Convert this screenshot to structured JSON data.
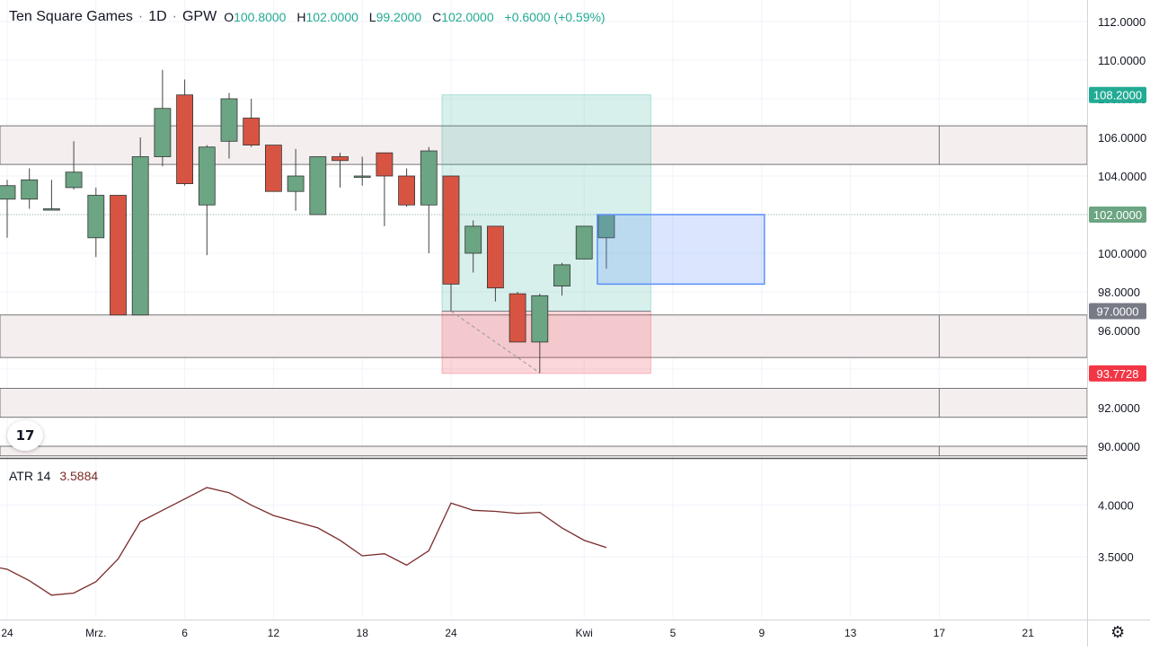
{
  "header": {
    "symbol": "Ten Square Games",
    "interval": "1D",
    "exchange": "GPW",
    "open_label": "O",
    "open": "100.8000",
    "high_label": "H",
    "high": "102.0000",
    "low_label": "L",
    "low": "99.2000",
    "close_label": "C",
    "close": "102.0000",
    "change": "+0.6000 (+0.59%)"
  },
  "indicator": {
    "name": "ATR 14",
    "value": "3.5884"
  },
  "colors": {
    "up": "#6ba583",
    "down": "#d75442",
    "atr": "#7b2a2a",
    "target": "#22ab94",
    "stop": "#f23645",
    "projection": "#5b8ff9"
  },
  "chart_data": [
    {
      "type": "candlestick",
      "title": "",
      "xlabel": "",
      "ylabel": "",
      "ylim": [
        89.5,
        112.8
      ],
      "x_ticks": [
        {
          "label": "24",
          "slot": 0
        },
        {
          "label": "Mrz.",
          "slot": 4
        },
        {
          "label": "6",
          "slot": 8
        },
        {
          "label": "12",
          "slot": 12
        },
        {
          "label": "18",
          "slot": 16
        },
        {
          "label": "24",
          "slot": 20
        },
        {
          "label": "Kwi",
          "slot": 26
        },
        {
          "label": "5",
          "slot": 30
        },
        {
          "label": "9",
          "slot": 34
        },
        {
          "label": "13",
          "slot": 38
        },
        {
          "label": "17",
          "slot": 42
        },
        {
          "label": "21",
          "slot": 46
        }
      ],
      "y_ticks": [
        112,
        110,
        108,
        106,
        104,
        102,
        100,
        98,
        96,
        94,
        92,
        90
      ],
      "price_labels": [
        {
          "value": 108.2,
          "text": "108.2000",
          "color": "#22ab94"
        },
        {
          "value": 102.0,
          "text": "102.0000",
          "color": "#6ba583"
        },
        {
          "value": 97.0,
          "text": "97.0000",
          "color": "#787b86"
        },
        {
          "value": 93.7728,
          "text": "93.7728",
          "color": "#f23645"
        }
      ],
      "candles": [
        {
          "slot": 0,
          "o": 102.8,
          "h": 103.8,
          "l": 100.8,
          "c": 103.5
        },
        {
          "slot": 1,
          "o": 102.8,
          "h": 104.4,
          "l": 102.3,
          "c": 103.8
        },
        {
          "slot": 2,
          "o": 102.3,
          "h": 103.8,
          "l": 102.3,
          "c": 102.3
        },
        {
          "slot": 3,
          "o": 103.4,
          "h": 105.8,
          "l": 103.3,
          "c": 104.2
        },
        {
          "slot": 4,
          "o": 100.8,
          "h": 103.4,
          "l": 99.8,
          "c": 103.0
        },
        {
          "slot": 5,
          "o": 103.0,
          "h": 103.0,
          "l": 96.8,
          "c": 96.8
        },
        {
          "slot": 6,
          "o": 96.8,
          "h": 106.0,
          "l": 96.8,
          "c": 105.0
        },
        {
          "slot": 7,
          "o": 105.0,
          "h": 109.5,
          "l": 104.5,
          "c": 107.5
        },
        {
          "slot": 8,
          "o": 108.2,
          "h": 109.0,
          "l": 103.5,
          "c": 103.6
        },
        {
          "slot": 9,
          "o": 102.5,
          "h": 105.6,
          "l": 99.9,
          "c": 105.5
        },
        {
          "slot": 10,
          "o": 105.8,
          "h": 108.3,
          "l": 104.9,
          "c": 108.0
        },
        {
          "slot": 11,
          "o": 107.0,
          "h": 108.0,
          "l": 105.5,
          "c": 105.6
        },
        {
          "slot": 12,
          "o": 105.6,
          "h": 105.6,
          "l": 103.2,
          "c": 103.2
        },
        {
          "slot": 13,
          "o": 103.2,
          "h": 105.4,
          "l": 102.2,
          "c": 104.0
        },
        {
          "slot": 14,
          "o": 102.0,
          "h": 105.0,
          "l": 102.0,
          "c": 105.0
        },
        {
          "slot": 15,
          "o": 105.0,
          "h": 105.2,
          "l": 103.4,
          "c": 104.8
        },
        {
          "slot": 16,
          "o": 104.0,
          "h": 105.0,
          "l": 103.5,
          "c": 104.0
        },
        {
          "slot": 17,
          "o": 105.2,
          "h": 105.2,
          "l": 101.4,
          "c": 104.0
        },
        {
          "slot": 18,
          "o": 104.0,
          "h": 104.4,
          "l": 102.4,
          "c": 102.5
        },
        {
          "slot": 19,
          "o": 102.5,
          "h": 105.5,
          "l": 100.0,
          "c": 105.3
        },
        {
          "slot": 20,
          "o": 104.0,
          "h": 104.0,
          "l": 97.0,
          "c": 98.4
        },
        {
          "slot": 21,
          "o": 100.0,
          "h": 101.7,
          "l": 99.0,
          "c": 101.4
        },
        {
          "slot": 22,
          "o": 101.4,
          "h": 101.4,
          "l": 97.5,
          "c": 98.2
        },
        {
          "slot": 23,
          "o": 97.9,
          "h": 98.0,
          "l": 95.4,
          "c": 95.4
        },
        {
          "slot": 24,
          "o": 95.4,
          "h": 97.9,
          "l": 93.8,
          "c": 97.8
        },
        {
          "slot": 25,
          "o": 98.3,
          "h": 99.5,
          "l": 97.8,
          "c": 99.4
        },
        {
          "slot": 26,
          "o": 99.7,
          "h": 101.4,
          "l": 99.7,
          "c": 101.4
        },
        {
          "slot": 27,
          "o": 100.8,
          "h": 102.0,
          "l": 99.2,
          "c": 102.0
        }
      ],
      "zones": [
        {
          "from": 104.6,
          "to": 106.6
        },
        {
          "from": 94.6,
          "to": 96.8
        },
        {
          "from": 91.5,
          "to": 93.0
        },
        {
          "from": 89.5,
          "to": 90.0
        }
      ],
      "zone_end_slot": 42,
      "position_tool": {
        "start_slot": 20,
        "end_slot": 29,
        "entry": 97.0,
        "target": 108.2,
        "stop": 93.7728
      },
      "projection_box": {
        "start_slot": 27,
        "end_slot": 34,
        "top": 102.0,
        "bottom": 98.4
      },
      "dashed_line": {
        "from_slot": 20,
        "from_value": 97.0,
        "to_slot": 24,
        "to_value": 93.8
      },
      "current_price_line": 102.0
    },
    {
      "type": "line",
      "title": "",
      "series": [
        {
          "name": "ATR 14",
          "x": [
            -1,
            0,
            1,
            2,
            3,
            4,
            5,
            6,
            7,
            8,
            9,
            10,
            11,
            12,
            13,
            14,
            15,
            16,
            17,
            18,
            19,
            20,
            21,
            22,
            23,
            24,
            25,
            26,
            27
          ],
          "values": [
            3.42,
            3.38,
            3.27,
            3.13,
            3.15,
            3.26,
            3.48,
            3.84,
            3.95,
            4.06,
            4.17,
            4.12,
            4.0,
            3.9,
            3.84,
            3.78,
            3.66,
            3.51,
            3.53,
            3.42,
            3.56,
            4.02,
            3.95,
            3.94,
            3.92,
            3.93,
            3.78,
            3.66,
            3.59
          ]
        }
      ],
      "ylim": [
        3.05,
        4.3
      ],
      "y_ticks": [
        4.0,
        3.5
      ],
      "y_tick_labels": [
        "4.0000",
        "3.5000"
      ]
    }
  ]
}
